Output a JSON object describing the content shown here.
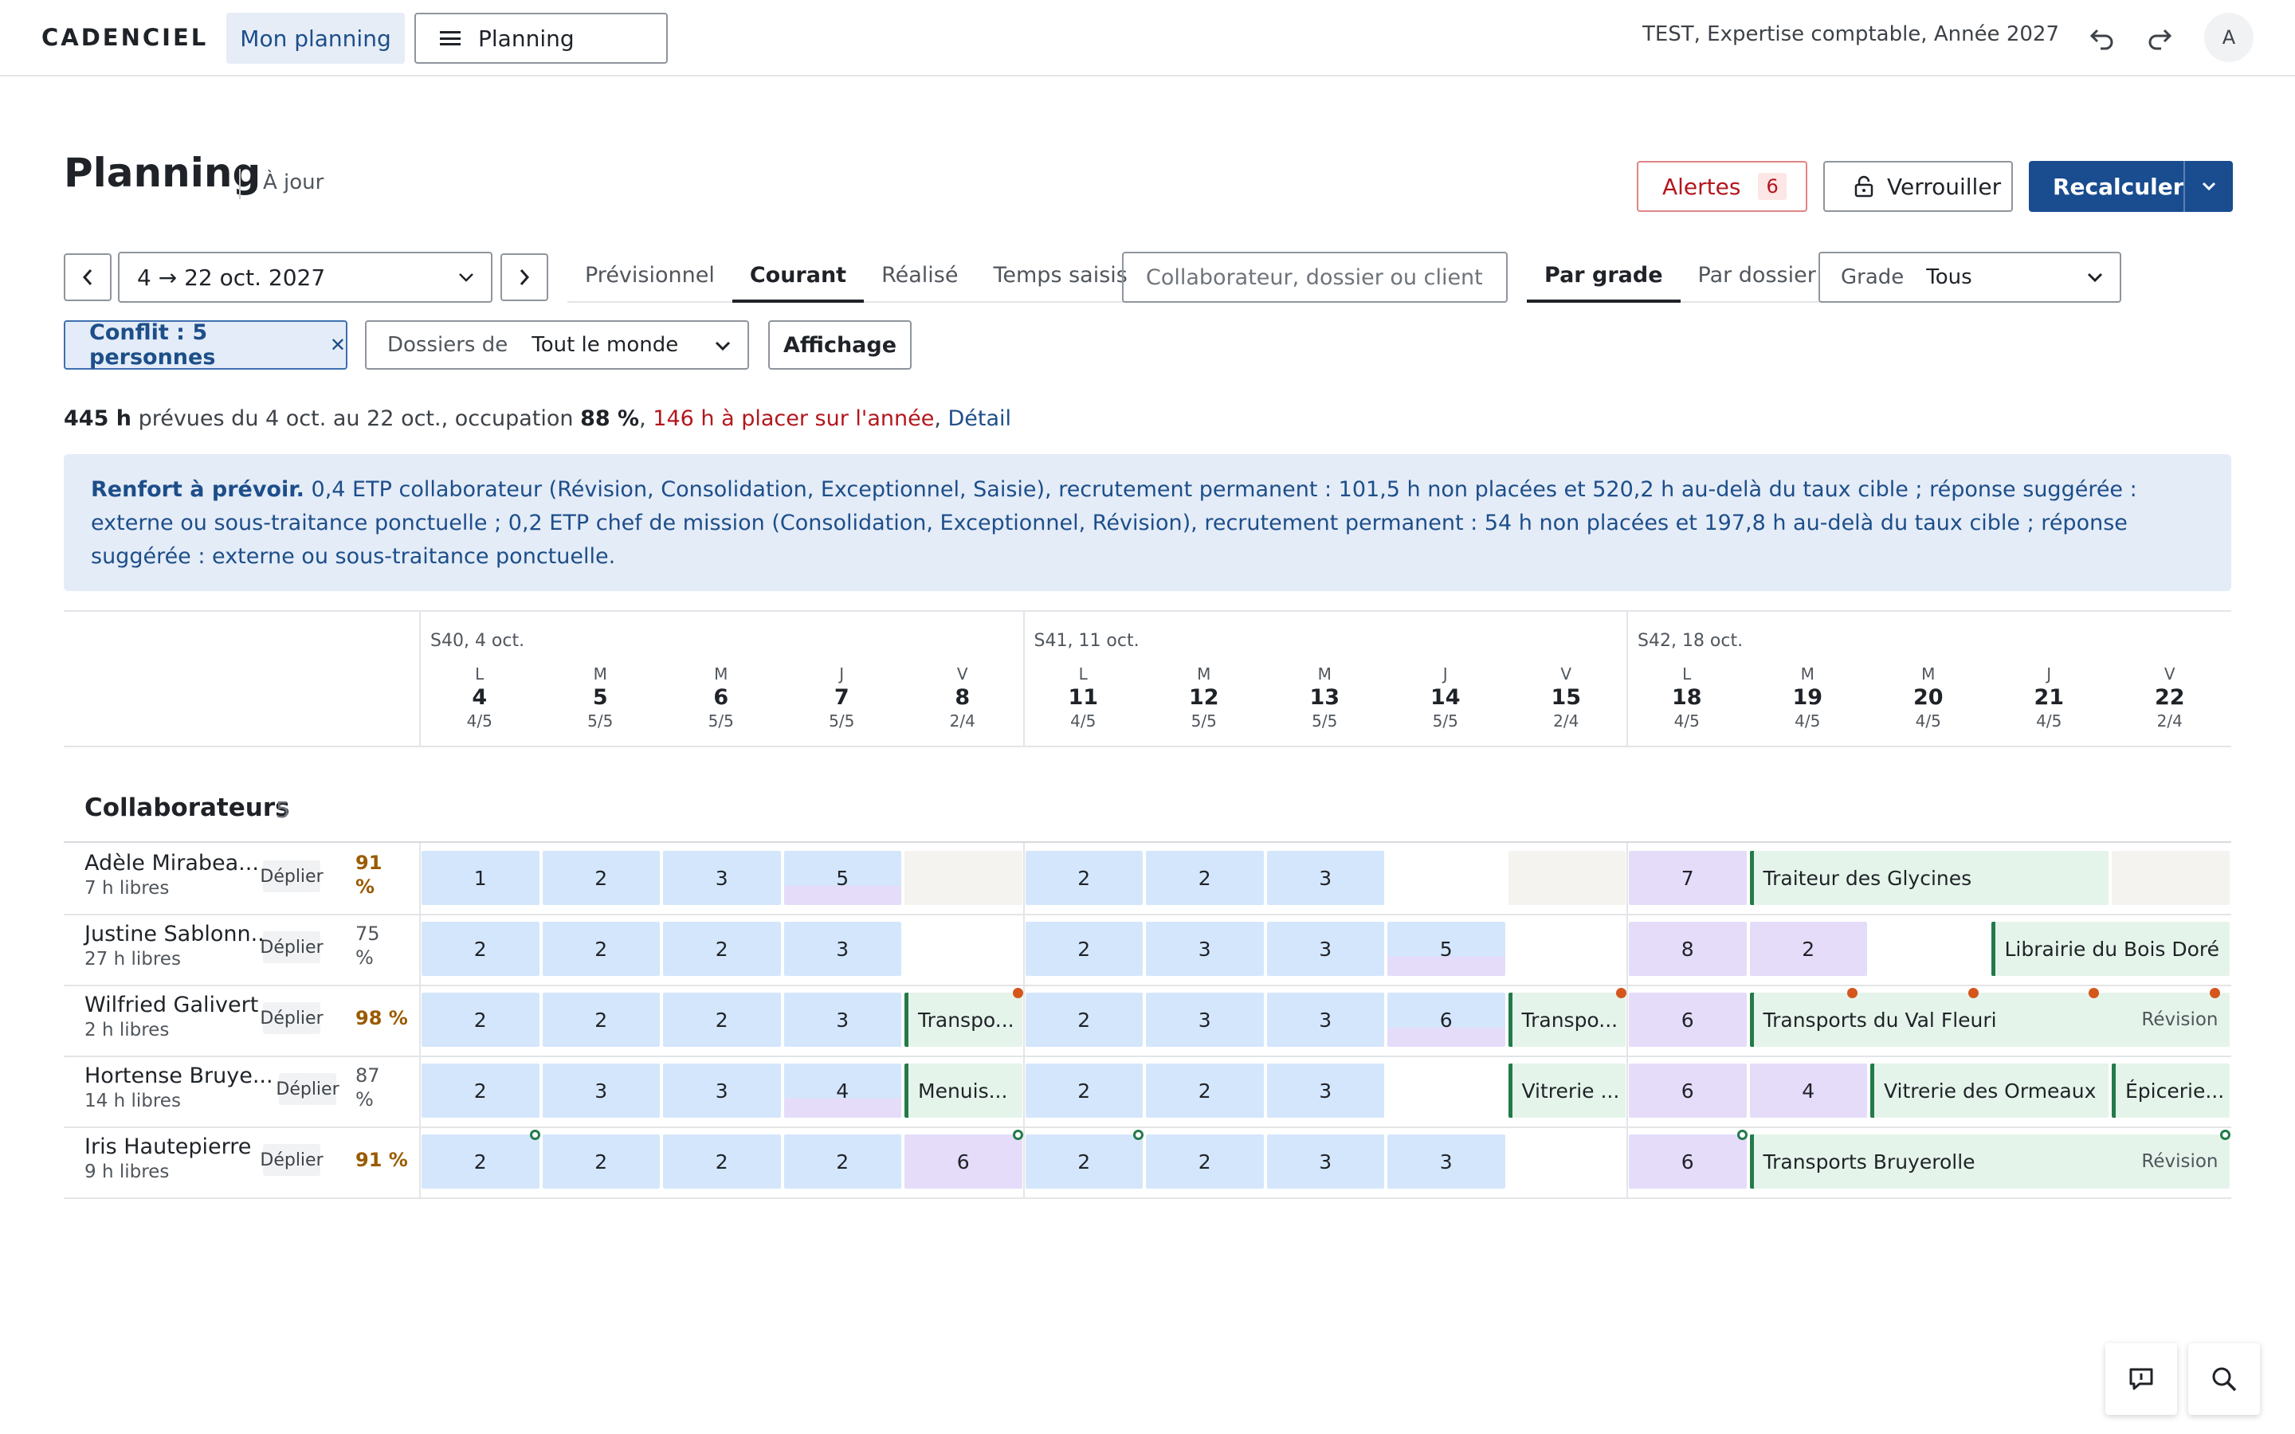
{
  "topbar": {
    "brand": "CADENCIEL",
    "nav_mon_planning": "Mon planning",
    "nav_planning": "Planning",
    "context": "TEST, Expertise comptable, Année 2027",
    "avatar": "A"
  },
  "header": {
    "title": "Planning",
    "status": "À jour",
    "alerts_label": "Alertes",
    "alerts_count": "6",
    "lock_label": "Verrouiller",
    "recalc_label": "Recalculer"
  },
  "filters": {
    "date_range": "4 → 22 oct. 2027",
    "view_tabs": [
      "Prévisionnel",
      "Courant",
      "Réalisé",
      "Temps saisis"
    ],
    "active_view": "Courant",
    "search_placeholder": "Collaborateur, dossier ou client",
    "group_tabs": [
      "Par grade",
      "Par dossier"
    ],
    "active_group": "Par grade",
    "grade_label": "Grade",
    "grade_value": "Tous",
    "conflict_chip": "Conflit : 5 personnes",
    "dossiers_label": "Dossiers de",
    "dossiers_value": "Tout le monde",
    "affichage_label": "Affichage"
  },
  "summary": {
    "hours": "445 h",
    "text1": " prévues du 4 oct. au 22 oct., occupation ",
    "occupation": "88 %",
    "to_place": "146 h à placer sur l'année",
    "detail_link": "Détail"
  },
  "info": {
    "lead": "Renfort à prévoir.",
    "text": " 0,4 ETP collaborateur (Révision, Consolidation, Exceptionnel, Saisie), recrutement permanent : 101,5 h non placées et 520,2 h au-delà du taux cible ; réponse suggérée : externe ou sous-traitance ponctuelle ; 0,2 ETP chef de mission (Consolidation, Exceptionnel, Révision), recrutement permanent : 54 h non placées et 197,8 h au-delà du taux cible ; réponse suggérée : externe ou sous-traitance ponctuelle."
  },
  "weeks": [
    {
      "label": "S40, 4 oct.",
      "days": [
        {
          "l": "L",
          "n": "4",
          "f": "4/5"
        },
        {
          "l": "M",
          "n": "5",
          "f": "5/5"
        },
        {
          "l": "M",
          "n": "6",
          "f": "5/5"
        },
        {
          "l": "J",
          "n": "7",
          "f": "5/5"
        },
        {
          "l": "V",
          "n": "8",
          "f": "2/4"
        }
      ]
    },
    {
      "label": "S41, 11 oct.",
      "days": [
        {
          "l": "L",
          "n": "11",
          "f": "4/5"
        },
        {
          "l": "M",
          "n": "12",
          "f": "5/5"
        },
        {
          "l": "M",
          "n": "13",
          "f": "5/5"
        },
        {
          "l": "J",
          "n": "14",
          "f": "5/5"
        },
        {
          "l": "V",
          "n": "15",
          "f": "2/4"
        }
      ]
    },
    {
      "label": "S42, 18 oct.",
      "days": [
        {
          "l": "L",
          "n": "18",
          "f": "4/5"
        },
        {
          "l": "M",
          "n": "19",
          "f": "4/5"
        },
        {
          "l": "M",
          "n": "20",
          "f": "4/5"
        },
        {
          "l": "J",
          "n": "21",
          "f": "4/5"
        },
        {
          "l": "V",
          "n": "22",
          "f": "2/4"
        }
      ]
    }
  ],
  "collaborateurs": {
    "title": "Collaborateurs",
    "count": "5",
    "deplier_label": "Déplier",
    "people": [
      {
        "name": "Adèle Mirabea...",
        "free": "7 h libres",
        "pct": "91 %",
        "pct_style": "orange",
        "cells": [
          {
            "day": 0,
            "span": 1,
            "type": "blue",
            "text": "1"
          },
          {
            "day": 1,
            "span": 1,
            "type": "blue",
            "text": "2"
          },
          {
            "day": 2,
            "span": 1,
            "type": "blue",
            "text": "3"
          },
          {
            "day": 3,
            "span": 1,
            "type": "mix",
            "text": "5"
          },
          {
            "day": 4,
            "span": 1,
            "type": "beige",
            "text": ""
          },
          {
            "day": 5,
            "span": 1,
            "type": "blue",
            "text": "2"
          },
          {
            "day": 6,
            "span": 1,
            "type": "blue",
            "text": "2"
          },
          {
            "day": 7,
            "span": 1,
            "type": "blue",
            "text": "3"
          },
          {
            "day": 9,
            "span": 1,
            "type": "beige",
            "text": ""
          },
          {
            "day": 10,
            "span": 1,
            "type": "purple",
            "text": "7"
          },
          {
            "day": 11,
            "span": 3,
            "type": "green",
            "text": "Traiteur des Glycines"
          },
          {
            "day": 14,
            "span": 1,
            "type": "beige",
            "text": ""
          }
        ]
      },
      {
        "name": "Justine Sablonn...",
        "free": "27 h libres",
        "pct": "75 %",
        "pct_style": "grey",
        "cells": [
          {
            "day": 0,
            "span": 1,
            "type": "blue",
            "text": "2"
          },
          {
            "day": 1,
            "span": 1,
            "type": "blue",
            "text": "2"
          },
          {
            "day": 2,
            "span": 1,
            "type": "blue",
            "text": "2"
          },
          {
            "day": 3,
            "span": 1,
            "type": "blue",
            "text": "3"
          },
          {
            "day": 5,
            "span": 1,
            "type": "blue",
            "text": "2"
          },
          {
            "day": 6,
            "span": 1,
            "type": "blue",
            "text": "3"
          },
          {
            "day": 7,
            "span": 1,
            "type": "blue",
            "text": "3"
          },
          {
            "day": 8,
            "span": 1,
            "type": "mix",
            "text": "5"
          },
          {
            "day": 10,
            "span": 1,
            "type": "purple",
            "text": "8"
          },
          {
            "day": 11,
            "span": 1,
            "type": "purple",
            "text": "2"
          },
          {
            "day": 13,
            "span": 2,
            "type": "green",
            "text": "Librairie du Bois Doré"
          }
        ]
      },
      {
        "name": "Wilfried Galivert",
        "free": "2 h libres",
        "pct": "98 %",
        "pct_style": "orange",
        "cells": [
          {
            "day": 0,
            "span": 1,
            "type": "blue",
            "text": "2"
          },
          {
            "day": 1,
            "span": 1,
            "type": "blue",
            "text": "2"
          },
          {
            "day": 2,
            "span": 1,
            "type": "blue",
            "text": "2"
          },
          {
            "day": 3,
            "span": 1,
            "type": "blue",
            "text": "3"
          },
          {
            "day": 4,
            "span": 1,
            "type": "green",
            "text": "Transpo...",
            "dot": "orange"
          },
          {
            "day": 5,
            "span": 1,
            "type": "blue",
            "text": "2"
          },
          {
            "day": 6,
            "span": 1,
            "type": "blue",
            "text": "3"
          },
          {
            "day": 7,
            "span": 1,
            "type": "blue",
            "text": "3"
          },
          {
            "day": 8,
            "span": 1,
            "type": "mix",
            "text": "6"
          },
          {
            "day": 9,
            "span": 1,
            "type": "green",
            "text": "Transpo...",
            "dot": "orange"
          },
          {
            "day": 10,
            "span": 1,
            "type": "purple",
            "text": "6"
          },
          {
            "day": 11,
            "span": 4,
            "type": "green",
            "text": "Transports du Val Fleuri",
            "right": "Révision",
            "dots": "orange-multi"
          }
        ]
      },
      {
        "name": "Hortense Bruye...",
        "free": "14 h libres",
        "pct": "87 %",
        "pct_style": "grey",
        "cells": [
          {
            "day": 0,
            "span": 1,
            "type": "blue",
            "text": "2"
          },
          {
            "day": 1,
            "span": 1,
            "type": "blue",
            "text": "3"
          },
          {
            "day": 2,
            "span": 1,
            "type": "blue",
            "text": "3"
          },
          {
            "day": 3,
            "span": 1,
            "type": "mix",
            "text": "4"
          },
          {
            "day": 4,
            "span": 1,
            "type": "green",
            "text": "Menuis..."
          },
          {
            "day": 5,
            "span": 1,
            "type": "blue",
            "text": "2"
          },
          {
            "day": 6,
            "span": 1,
            "type": "blue",
            "text": "2"
          },
          {
            "day": 7,
            "span": 1,
            "type": "blue",
            "text": "3"
          },
          {
            "day": 9,
            "span": 1,
            "type": "green",
            "text": "Vitrerie ..."
          },
          {
            "day": 10,
            "span": 1,
            "type": "purple",
            "text": "6"
          },
          {
            "day": 11,
            "span": 1,
            "type": "purple",
            "text": "4"
          },
          {
            "day": 12,
            "span": 2,
            "type": "green",
            "text": "Vitrerie des Ormeaux"
          },
          {
            "day": 14,
            "span": 1,
            "type": "green",
            "text": "Épicerie..."
          }
        ]
      },
      {
        "name": "Iris Hautepierre",
        "free": "9 h libres",
        "pct": "91 %",
        "pct_style": "orange",
        "cells": [
          {
            "day": 0,
            "span": 1,
            "type": "blue",
            "text": "2",
            "dot": "green"
          },
          {
            "day": 1,
            "span": 1,
            "type": "blue",
            "text": "2"
          },
          {
            "day": 2,
            "span": 1,
            "type": "blue",
            "text": "2"
          },
          {
            "day": 3,
            "span": 1,
            "type": "blue",
            "text": "2"
          },
          {
            "day": 4,
            "span": 1,
            "type": "purple",
            "text": "6",
            "dot": "green"
          },
          {
            "day": 5,
            "span": 1,
            "type": "blue",
            "text": "2",
            "dot": "green"
          },
          {
            "day": 6,
            "span": 1,
            "type": "blue",
            "text": "2"
          },
          {
            "day": 7,
            "span": 1,
            "type": "blue",
            "text": "3"
          },
          {
            "day": 8,
            "span": 1,
            "type": "blue",
            "text": "3"
          },
          {
            "day": 10,
            "span": 1,
            "type": "purple",
            "text": "6",
            "dot": "green"
          },
          {
            "day": 11,
            "span": 4,
            "type": "green",
            "text": "Transports Bruyerolle",
            "right": "Révision",
            "dot": "green"
          }
        ]
      }
    ]
  },
  "icons": {
    "undo": "undo-icon",
    "redo": "redo-icon",
    "lock": "lock-icon",
    "feedback": "message-icon",
    "search": "search-icon"
  },
  "colors": {
    "primary": "#1a4d8f",
    "alert": "#b3171d",
    "cell_blue": "#d4e6fb",
    "cell_purple": "#e5dcf9",
    "cell_green": "#e5f4ea",
    "cell_beige": "#f4f3f0",
    "dot_orange": "#d4561b",
    "dot_green": "#247a4a"
  }
}
